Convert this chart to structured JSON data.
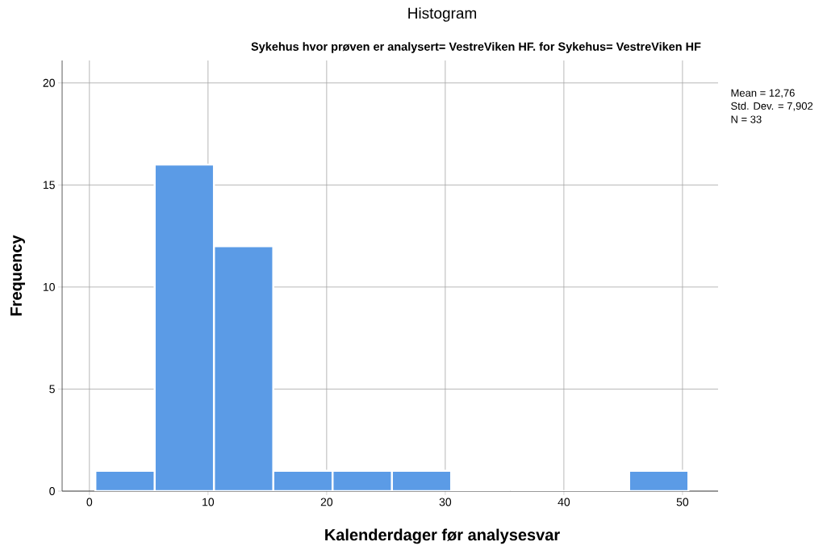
{
  "chart_data": {
    "type": "histogram",
    "title": "Histogram",
    "subtitle": "Sykehus hvor prøven er analysert= VestreViken HF.  for Sykehus= VestreViken HF",
    "xlabel": "Kalenderdager før analysesvar",
    "ylabel": "Frequency",
    "bins": [
      0.5,
      5.5,
      10.5,
      15.5,
      20.5,
      25.5,
      30.5,
      35.5,
      40.5,
      45.5,
      50.5
    ],
    "values": [
      1,
      16,
      12,
      1,
      1,
      1,
      0,
      0,
      0,
      1
    ],
    "color": "#5b9be6",
    "xlim": [
      -2.3,
      53
    ],
    "ylim": [
      0,
      21.1
    ],
    "xticks": [
      0,
      10,
      20,
      30,
      40,
      50
    ],
    "yticks": [
      0,
      5,
      10,
      15,
      20
    ],
    "grid": true,
    "annotations": [
      "Mean = 12,76",
      "Std. Dev. = 7,902",
      "N = 33"
    ]
  }
}
